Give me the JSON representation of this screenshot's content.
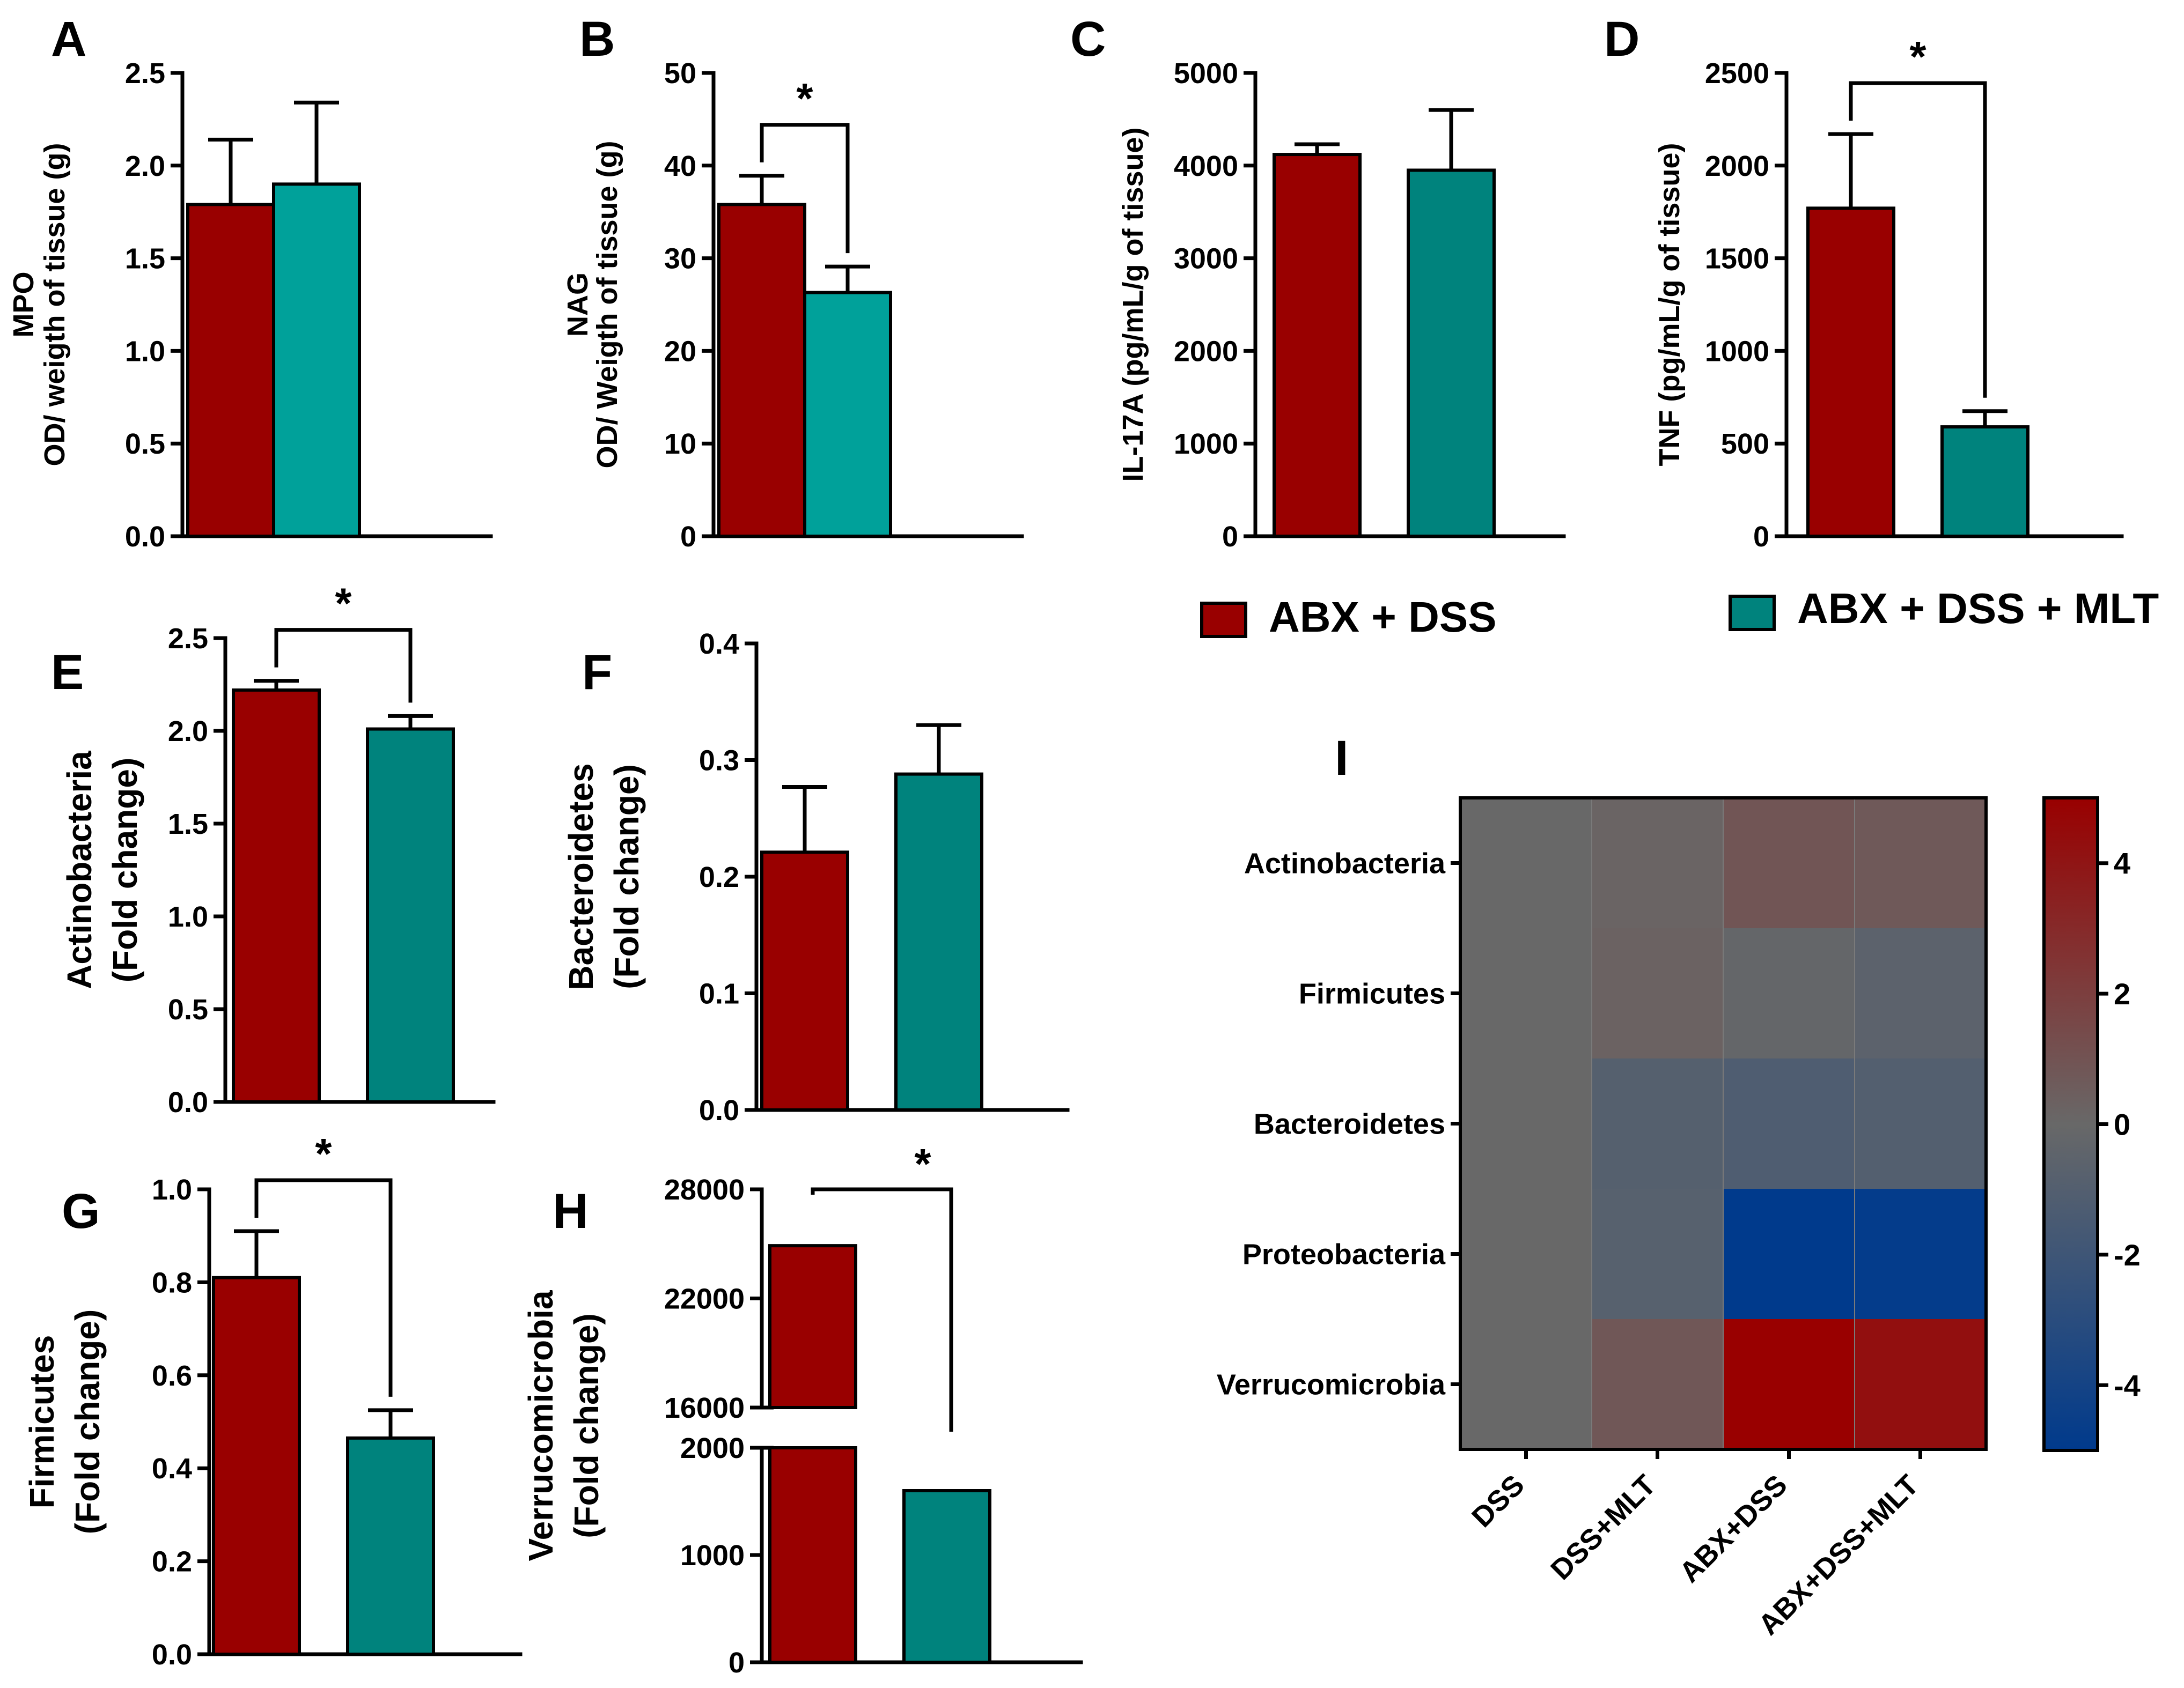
{
  "colors": {
    "abx_dss": "#990000",
    "abx_dss_mlt_light": "#00A19A",
    "abx_dss_mlt_dark": "#00837D"
  },
  "legend": [
    {
      "label": "ABX + DSS",
      "color": "#990000"
    },
    {
      "label": "ABX + DSS + MLT",
      "color": "#00837D"
    }
  ],
  "chart_data": [
    {
      "panel": "A",
      "type": "bar",
      "ylabel_lines": [
        "MPO",
        "OD/ weigth of tissue (g)"
      ],
      "ylim": [
        0,
        2.5
      ],
      "ticks": [
        "0.0",
        "0.5",
        "1.0",
        "1.5",
        "2.0",
        "2.5"
      ],
      "series": [
        {
          "name": "ABX + DSS",
          "value": 1.79,
          "err": 0.35
        },
        {
          "name": "ABX + DSS + MLT",
          "value": 1.9,
          "err": 0.44
        }
      ],
      "sig": ""
    },
    {
      "panel": "B",
      "type": "bar",
      "ylabel_lines": [
        "NAG",
        "OD/ Weigth of tissue (g)"
      ],
      "ylim": [
        0,
        50
      ],
      "ticks": [
        "0",
        "10",
        "20",
        "30",
        "40",
        "50"
      ],
      "series": [
        {
          "name": "ABX + DSS",
          "value": 35.8,
          "err": 3.1
        },
        {
          "name": "ABX + DSS + MLT",
          "value": 26.3,
          "err": 2.8
        }
      ],
      "sig": "*"
    },
    {
      "panel": "C",
      "type": "bar",
      "ylabel_lines": [
        "IL-17A (pg/mL/g of tissue)"
      ],
      "ylim": [
        0,
        5000
      ],
      "ticks": [
        "0",
        "1000",
        "2000",
        "3000",
        "4000",
        "5000"
      ],
      "series": [
        {
          "name": "ABX + DSS",
          "value": 4120,
          "err": 110
        },
        {
          "name": "ABX + DSS + MLT",
          "value": 3950,
          "err": 650
        }
      ],
      "sig": ""
    },
    {
      "panel": "D",
      "type": "bar",
      "ylabel_lines": [
        "TNF (pg/mL/g of tissue)"
      ],
      "ylim": [
        0,
        2500
      ],
      "ticks": [
        "0",
        "500",
        "1000",
        "1500",
        "2000",
        "2500"
      ],
      "series": [
        {
          "name": "ABX + DSS",
          "value": 1770,
          "err": 400
        },
        {
          "name": "ABX + DSS + MLT",
          "value": 590,
          "err": 85
        }
      ],
      "sig": "*"
    },
    {
      "panel": "E",
      "type": "bar",
      "ylabel_lines": [
        "Actinobacteria",
        "(Fold change)"
      ],
      "ylim": [
        0,
        2.5
      ],
      "ticks": [
        "0.0",
        "0.5",
        "1.0",
        "1.5",
        "2.0",
        "2.5"
      ],
      "series": [
        {
          "name": "ABX + DSS",
          "value": 2.22,
          "err": 0.05
        },
        {
          "name": "ABX + DSS + MLT",
          "value": 2.01,
          "err": 0.07
        }
      ],
      "sig": "*"
    },
    {
      "panel": "F",
      "type": "bar",
      "ylabel_lines": [
        "Bacteroidetes",
        "(Fold change)"
      ],
      "ylim": [
        0,
        0.4
      ],
      "ticks": [
        "0.0",
        "0.1",
        "0.2",
        "0.3",
        "0.4"
      ],
      "series": [
        {
          "name": "ABX + DSS",
          "value": 0.221,
          "err": 0.056
        },
        {
          "name": "ABX + DSS + MLT",
          "value": 0.288,
          "err": 0.042
        }
      ],
      "sig": ""
    },
    {
      "panel": "G",
      "type": "bar",
      "ylabel_lines": [
        "Firmicutes",
        "(Fold change)"
      ],
      "ylim": [
        0,
        1.0
      ],
      "ticks": [
        "0.0",
        "0.2",
        "0.4",
        "0.6",
        "0.8",
        "1.0"
      ],
      "series": [
        {
          "name": "ABX + DSS",
          "value": 0.81,
          "err": 0.1
        },
        {
          "name": "ABX + DSS + MLT",
          "value": 0.465,
          "err": 0.06
        }
      ],
      "sig": "*"
    },
    {
      "panel": "H",
      "type": "bar",
      "broken_axis": true,
      "ylabel_lines": [
        "Verrucomicrobia",
        "(Fold change)"
      ],
      "ylim_lower": [
        0,
        2000
      ],
      "ylim_upper": [
        16000,
        28000
      ],
      "ticks_lower": [
        "0",
        "1000",
        "2000"
      ],
      "ticks_upper": [
        "16000",
        "22000",
        "28000"
      ],
      "series": [
        {
          "name": "ABX + DSS",
          "value": 24900,
          "err": 0
        },
        {
          "name": "ABX + DSS + MLT",
          "value": 1600,
          "err": 0
        }
      ],
      "sig": "*"
    },
    {
      "panel": "I",
      "type": "heatmap",
      "rows": [
        "Actinobacteria",
        "Firmicutes",
        "Bacteroidetes",
        "Proteobacteria",
        "Verrucomicrobia"
      ],
      "columns": [
        "DSS",
        "DSS+MLT",
        "ABX+DSS",
        "ABX+DSS+MLT"
      ],
      "values": [
        [
          0,
          0.2,
          0.9,
          0.7
        ],
        [
          0,
          0.3,
          -0.2,
          -0.6
        ],
        [
          0,
          -0.9,
          -1.2,
          -1.0
        ],
        [
          0,
          -0.8,
          -5.0,
          -4.8
        ],
        [
          0,
          0.8,
          5.0,
          4.3
        ]
      ],
      "colorbar_ticks": [
        "4",
        "2",
        "0",
        "-2",
        "-4"
      ],
      "colorbar_values": [
        4,
        2,
        0,
        -2,
        -4
      ],
      "vrange": [
        -5,
        5
      ]
    }
  ]
}
